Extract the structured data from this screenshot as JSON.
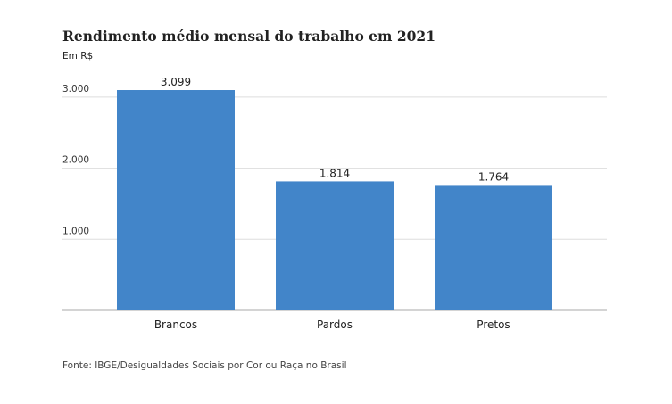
{
  "header": {
    "title": "Rendimento médio mensal do trabalho em 2021",
    "subtitle": "Em R$"
  },
  "footer": {
    "source": "Fonte: IBGE/Desigualdades Sociais por Cor ou Raça no Brasil"
  },
  "chart_data": {
    "type": "bar",
    "title": "Rendimento médio mensal do trabalho em 2021",
    "subtitle": "Em R$",
    "categories": [
      "Brancos",
      "Pardos",
      "Pretos"
    ],
    "values": [
      3099,
      1814,
      1764
    ],
    "value_labels": [
      "3.099",
      "1.814",
      "1.764"
    ],
    "ylim": [
      0,
      3000
    ],
    "yticks": [
      1000,
      2000,
      3000
    ],
    "ytick_labels": [
      "1.000",
      "2.000",
      "3.000"
    ],
    "grid": true,
    "bar_color": "#4285c9",
    "grid_color": "#dddddd",
    "axis_color": "#aaaaaa"
  }
}
